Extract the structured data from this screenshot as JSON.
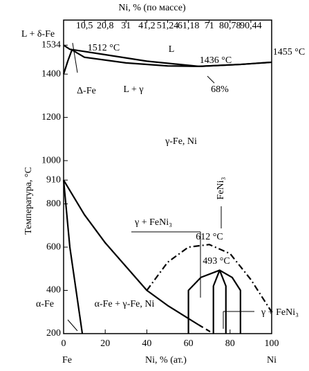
{
  "chart_data": {
    "type": "phase-diagram",
    "title": "Ni, % (по массе)",
    "y_label": "Температура, °C",
    "x_label": "Ni, % (ат.)",
    "x_start_label": "Fe",
    "x_end_label": "Ni",
    "xlim": [
      0,
      100
    ],
    "ylim": [
      200,
      1650
    ],
    "xticks": [
      0,
      20,
      40,
      60,
      80,
      100
    ],
    "yticks": [
      200,
      400,
      600,
      800,
      910,
      1000,
      1200,
      1400,
      1534
    ],
    "top_ticks": [
      {
        "value": 10,
        "label": "10,5"
      },
      {
        "value": 20,
        "label": "20,8"
      },
      {
        "value": 30,
        "label": "31"
      },
      {
        "value": 40,
        "label": "41,2"
      },
      {
        "value": 50,
        "label": "51,24"
      },
      {
        "value": 60,
        "label": "61,18"
      },
      {
        "value": 70,
        "label": "71"
      },
      {
        "value": 80,
        "label": "80,78"
      },
      {
        "value": 90,
        "label": "90,44"
      }
    ],
    "series": [
      {
        "color": "#000",
        "style": "solid",
        "x": [
          0,
          3,
          20,
          40,
          65,
          85,
          100
        ],
        "values": [
          1534,
          1515,
          1490,
          1460,
          1436,
          1445,
          1455
        ]
      },
      {
        "color": "#000",
        "style": "solid",
        "x": [
          4,
          10,
          30,
          50,
          65,
          85,
          100
        ],
        "values": [
          1512,
          1478,
          1452,
          1438,
          1436,
          1445,
          1455
        ]
      },
      {
        "color": "#000",
        "style": "solid",
        "x": [
          0,
          2,
          4
        ],
        "values": [
          1400,
          1460,
          1512
        ]
      },
      {
        "color": "#000",
        "style": "solid",
        "x": [
          0,
          10,
          20,
          30,
          40,
          50,
          60,
          65
        ],
        "values": [
          910,
          750,
          620,
          510,
          400,
          330,
          270,
          240
        ]
      },
      {
        "color": "#000",
        "style": "dashed",
        "x": [
          65,
          72
        ],
        "values": [
          240,
          200
        ]
      },
      {
        "color": "#000",
        "style": "solid",
        "x": [
          0,
          3,
          6,
          9
        ],
        "values": [
          910,
          600,
          400,
          200
        ]
      },
      {
        "color": "#000",
        "style": "dashdot",
        "x": [
          40,
          50,
          60,
          70,
          80,
          90,
          100
        ],
        "values": [
          400,
          530,
          600,
          612,
          570,
          450,
          300
        ]
      },
      {
        "color": "#000",
        "style": "solid",
        "x": [
          60,
          60,
          66,
          75,
          81,
          85,
          85
        ],
        "values": [
          200,
          400,
          460,
          493,
          460,
          400,
          200
        ]
      },
      {
        "color": "#000",
        "style": "solid",
        "x": [
          72,
          72,
          75,
          78,
          78
        ],
        "values": [
          200,
          420,
          493,
          420,
          200
        ]
      }
    ],
    "annotations": [
      "L + δ-Fe",
      "1512 °C",
      "L",
      "1436 °C",
      "1455 °C",
      "Δ-Fe",
      "L + γ",
      "68%",
      "γ-Fe, Ni",
      "FeNi₃",
      "γ + FeNi₃",
      "612 °C",
      "493 °C",
      "α-Fe",
      "α-Fe + γ-Fe, Ni",
      "γ + FeNi₃"
    ]
  }
}
